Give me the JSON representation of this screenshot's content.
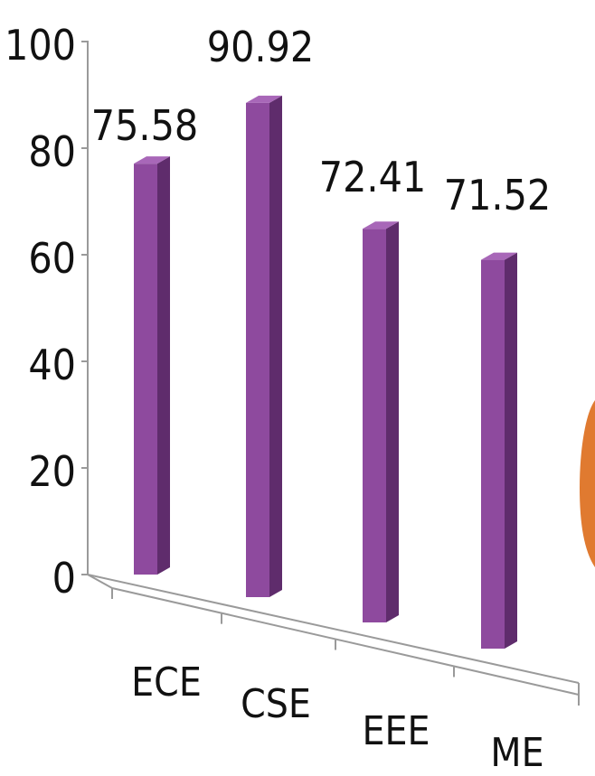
{
  "chart_data": {
    "type": "bar",
    "categories": [
      "ECE",
      "CSE",
      "EEE",
      "ME"
    ],
    "values": [
      75.58,
      90.92,
      72.41,
      71.52
    ],
    "data_labels": [
      "75.58",
      "90.92",
      "72.41",
      "71.52"
    ],
    "yticks": [
      "0",
      "20",
      "40",
      "60",
      "80",
      "100"
    ],
    "ylim": [
      0,
      100
    ],
    "title": "",
    "xlabel": "",
    "ylabel": "",
    "style": "3d-column",
    "legend": "none",
    "grid": false,
    "colors": {
      "bar_front": "#8e4a9e",
      "bar_side": "#5f2c6c",
      "bar_top": "#a867b8",
      "axis": "#9a9a9a",
      "floor_line": "#a8a8a8",
      "decor_orange": "#e07a30"
    }
  }
}
